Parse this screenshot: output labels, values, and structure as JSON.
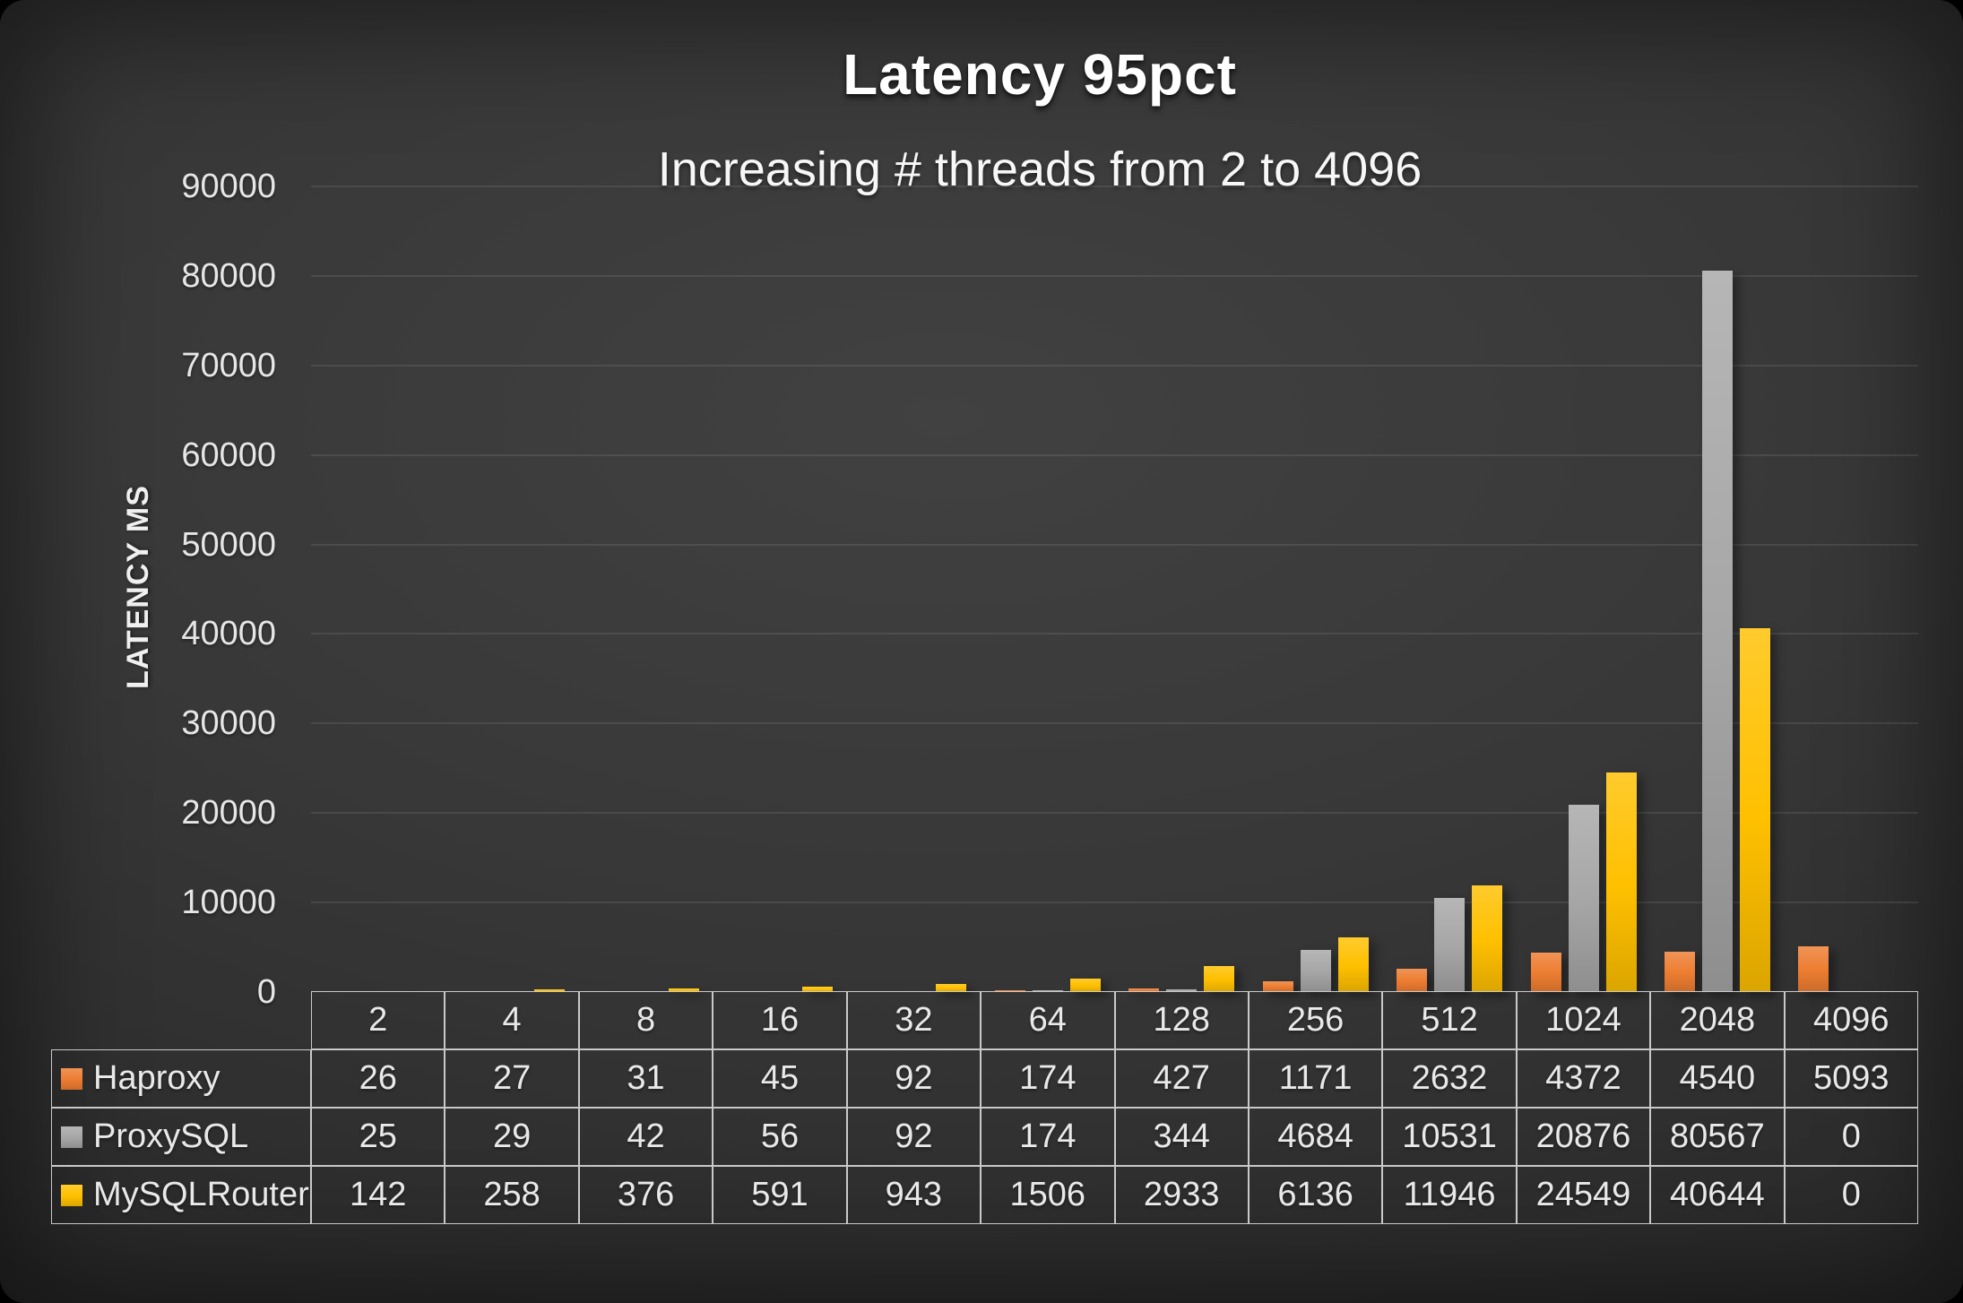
{
  "title": "Latency 95pct",
  "subtitle": "Increasing # threads from 2 to 4096",
  "chart_data": {
    "type": "bar",
    "title": "Latency 95pct",
    "subtitle": "Increasing # threads from 2 to 4096",
    "xlabel": "",
    "ylabel": "LATENCY MS",
    "ylim": [
      0,
      90000
    ],
    "ytick_step": 10000,
    "grid": true,
    "legend_position": "table-left",
    "categories": [
      "2",
      "4",
      "8",
      "16",
      "32",
      "64",
      "128",
      "256",
      "512",
      "1024",
      "2048",
      "4096"
    ],
    "series": [
      {
        "name": "Haproxy",
        "color": "#ED7D31",
        "values": [
          26,
          27,
          31,
          45,
          92,
          174,
          427,
          1171,
          2632,
          4372,
          4540,
          5093
        ]
      },
      {
        "name": "ProxySQL",
        "color": "#A6A6A6",
        "values": [
          25,
          29,
          42,
          56,
          92,
          174,
          344,
          4684,
          10531,
          20876,
          80567,
          0
        ]
      },
      {
        "name": "MySQLRouter",
        "color": "#FFC000",
        "values": [
          142,
          258,
          376,
          591,
          943,
          1506,
          2933,
          6136,
          11946,
          24549,
          40644,
          0
        ]
      }
    ]
  },
  "colors": {
    "background_center": "#414141",
    "background_edge": "#1f1f1f",
    "gridline": "rgba(255,255,255,0.09)",
    "table_border": "#c9c9c9",
    "text": "#ebebeb"
  }
}
